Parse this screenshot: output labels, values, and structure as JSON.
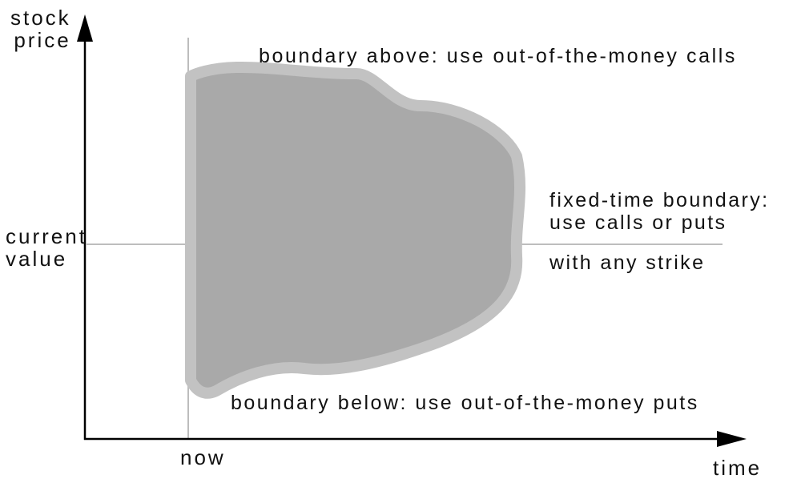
{
  "axes": {
    "y_label_line1": "stock",
    "y_label_line2": "price",
    "x_label": "time",
    "y_marker_line1": "current",
    "y_marker_line2": "value",
    "x_marker": "now"
  },
  "annotations": {
    "upper": "boundary above: use out-of-the-money calls",
    "right_line1": "fixed-time boundary:",
    "right_line2": "use calls or puts",
    "right_line3": "with any strike",
    "lower": "boundary below: use out-of-the-money puts"
  },
  "colors": {
    "region_fill": "#a9a9a9",
    "region_border": "#c2c2c2",
    "axis": "#000000",
    "guide_line": "#bdbdbd",
    "text": "#111111"
  }
}
